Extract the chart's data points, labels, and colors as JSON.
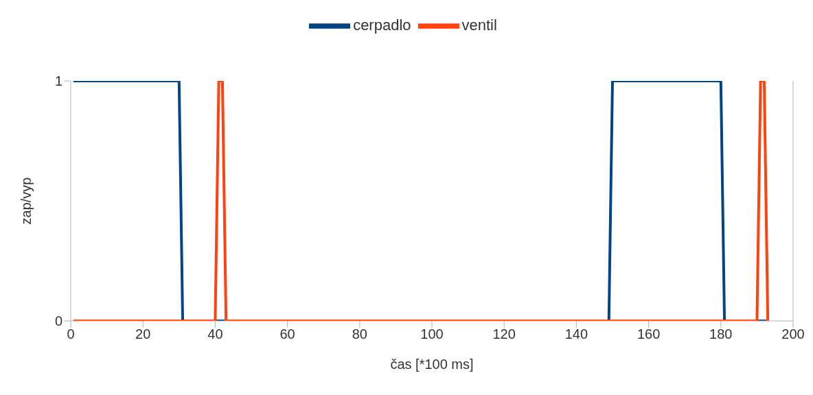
{
  "chart_data": {
    "type": "line",
    "xlabel": "čas [*100 ms]",
    "ylabel": "zap/vyp",
    "xlim": [
      0,
      200
    ],
    "xticks": [
      0,
      20,
      40,
      60,
      80,
      100,
      120,
      140,
      160,
      180,
      200
    ],
    "ylim": [
      0,
      1
    ],
    "yticks": [
      0,
      1
    ],
    "legend": "top",
    "marker": "none",
    "line_style": "solid",
    "series": [
      {
        "name": "cerpadlo",
        "color": "#004586",
        "x": [
          1,
          30,
          31,
          149,
          150,
          180,
          181,
          193
        ],
        "values": [
          1,
          1,
          0,
          0,
          1,
          1,
          0,
          0
        ]
      },
      {
        "name": "ventil",
        "color": "#ff420e",
        "x": [
          1,
          40,
          41,
          42,
          43,
          190,
          191,
          192,
          193
        ],
        "values": [
          0,
          0,
          1,
          1,
          0,
          0,
          1,
          1,
          0
        ]
      }
    ]
  }
}
